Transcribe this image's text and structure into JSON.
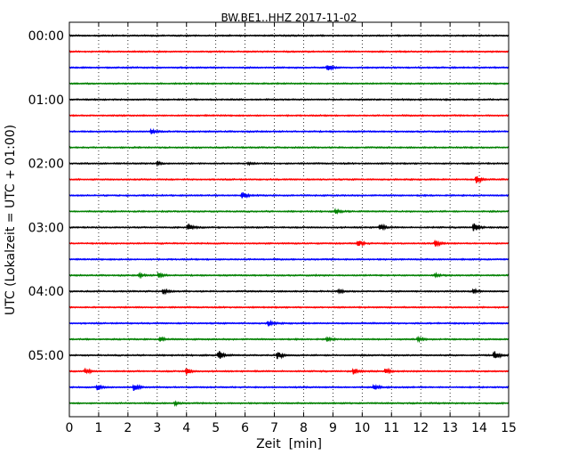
{
  "chart_data": {
    "type": "line",
    "title": "BW.BE1..HHZ 2017-11-02",
    "xlabel": "Zeit  [min]",
    "ylabel": "UTC (Lokalzeit = UTC + 01:00)",
    "xlim": [
      0,
      15
    ],
    "x_ticks": [
      0,
      1,
      2,
      3,
      4,
      5,
      6,
      7,
      8,
      9,
      10,
      11,
      12,
      13,
      14,
      15
    ],
    "x_tick_labels": [
      "0",
      "1",
      "2",
      "3",
      "4",
      "5",
      "6",
      "7",
      "8",
      "9",
      "10",
      "11",
      "12",
      "13",
      "14",
      "15"
    ],
    "y_tick_labels": [
      {
        "row": 0,
        "label": "00:00"
      },
      {
        "row": 4,
        "label": "01:00"
      },
      {
        "row": 8,
        "label": "02:00"
      },
      {
        "row": 12,
        "label": "03:00"
      },
      {
        "row": 16,
        "label": "04:00"
      },
      {
        "row": 20,
        "label": "05:00"
      }
    ],
    "grid": "vertical-dotted",
    "series_colors": [
      "#000000",
      "#ff0000",
      "#0000ff",
      "#008000"
    ],
    "rows": [
      {
        "start": "00:00",
        "events": []
      },
      {
        "start": "00:15",
        "events": []
      },
      {
        "start": "00:30",
        "events": [
          {
            "t": 8.8,
            "amp": 0.3
          }
        ]
      },
      {
        "start": "00:45",
        "events": []
      },
      {
        "start": "01:00",
        "events": []
      },
      {
        "start": "01:15",
        "events": []
      },
      {
        "start": "01:30",
        "events": [
          {
            "t": 2.8,
            "amp": 0.15
          }
        ]
      },
      {
        "start": "01:45",
        "events": []
      },
      {
        "start": "02:00",
        "events": [
          {
            "t": 3.0,
            "amp": 0.1
          },
          {
            "t": 6.1,
            "amp": 0.08
          }
        ]
      },
      {
        "start": "02:15",
        "events": [
          {
            "t": 13.9,
            "amp": 0.35
          }
        ]
      },
      {
        "start": "02:30",
        "events": [
          {
            "t": 5.9,
            "amp": 0.25
          }
        ]
      },
      {
        "start": "02:45",
        "events": [
          {
            "t": 9.1,
            "amp": 0.15
          }
        ]
      },
      {
        "start": "03:00",
        "events": [
          {
            "t": 4.05,
            "amp": 0.3
          },
          {
            "t": 10.6,
            "amp": 0.25
          },
          {
            "t": 13.8,
            "amp": 0.4
          }
        ]
      },
      {
        "start": "03:15",
        "events": [
          {
            "t": 9.85,
            "amp": 0.3
          },
          {
            "t": 12.5,
            "amp": 0.25
          }
        ]
      },
      {
        "start": "03:30",
        "events": []
      },
      {
        "start": "03:45",
        "events": [
          {
            "t": 2.4,
            "amp": 0.15
          },
          {
            "t": 3.05,
            "amp": 0.2
          },
          {
            "t": 12.5,
            "amp": 0.12
          }
        ]
      },
      {
        "start": "04:00",
        "events": [
          {
            "t": 3.2,
            "amp": 0.2
          },
          {
            "t": 9.2,
            "amp": 0.12
          },
          {
            "t": 13.8,
            "amp": 0.18
          }
        ]
      },
      {
        "start": "04:15",
        "events": []
      },
      {
        "start": "04:30",
        "events": [
          {
            "t": 6.8,
            "amp": 0.25
          }
        ]
      },
      {
        "start": "04:45",
        "events": [
          {
            "t": 3.1,
            "amp": 0.18
          },
          {
            "t": 8.8,
            "amp": 0.15
          },
          {
            "t": 11.9,
            "amp": 0.15
          }
        ]
      },
      {
        "start": "05:00",
        "events": [
          {
            "t": 5.1,
            "amp": 0.35
          },
          {
            "t": 7.1,
            "amp": 0.35
          },
          {
            "t": 14.5,
            "amp": 0.4
          }
        ]
      },
      {
        "start": "05:15",
        "events": [
          {
            "t": 0.55,
            "amp": 0.2
          },
          {
            "t": 4.0,
            "amp": 0.3
          },
          {
            "t": 9.7,
            "amp": 0.25
          },
          {
            "t": 10.8,
            "amp": 0.3
          }
        ]
      },
      {
        "start": "05:30",
        "events": [
          {
            "t": 0.95,
            "amp": 0.3
          },
          {
            "t": 2.2,
            "amp": 0.3
          },
          {
            "t": 10.4,
            "amp": 0.25
          }
        ]
      },
      {
        "start": "05:45",
        "events": [
          {
            "t": 3.6,
            "amp": 0.12
          }
        ]
      }
    ]
  }
}
